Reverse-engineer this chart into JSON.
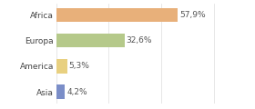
{
  "categories": [
    "Asia",
    "America",
    "Europa",
    "Africa"
  ],
  "values": [
    4.2,
    5.3,
    32.6,
    57.9
  ],
  "labels": [
    "4,2%",
    "5,3%",
    "32,6%",
    "57,9%"
  ],
  "bar_colors": [
    "#7b8ec8",
    "#e8d080",
    "#b5c98a",
    "#e8b07a"
  ],
  "background_color": "#ffffff",
  "xlim": [
    0,
    80
  ],
  "bar_height": 0.55,
  "label_fontsize": 6.5,
  "category_fontsize": 6.5,
  "grid_ticks": [
    0,
    25,
    50,
    75
  ],
  "grid_color": "#dddddd"
}
